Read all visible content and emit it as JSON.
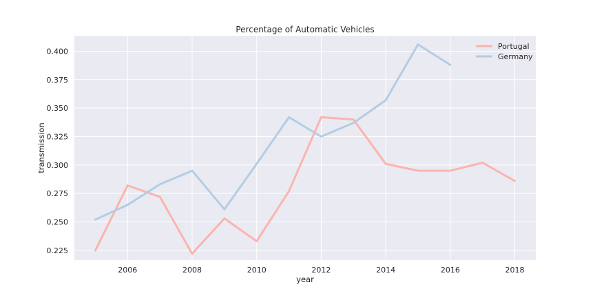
{
  "chart_data": {
    "type": "line",
    "title": "Percentage of Automatic Vehicles",
    "xlabel": "year",
    "ylabel": "transmission",
    "xlim": [
      2004.35,
      2018.65
    ],
    "ylim": [
      0.2164,
      0.4136
    ],
    "x_ticks": [
      2006,
      2008,
      2010,
      2012,
      2014,
      2016,
      2018
    ],
    "x_tick_labels": [
      "2006",
      "2008",
      "2010",
      "2012",
      "2014",
      "2016",
      "2018"
    ],
    "y_ticks": [
      0.225,
      0.25,
      0.275,
      0.3,
      0.325,
      0.35,
      0.375,
      0.4
    ],
    "y_tick_labels": [
      "0.225",
      "0.250",
      "0.275",
      "0.300",
      "0.325",
      "0.350",
      "0.375",
      "0.400"
    ],
    "grid": true,
    "legend_position": "top-right",
    "background_color": "#eaeaf2",
    "grid_color": "#ffffff",
    "series": [
      {
        "name": "Portugal",
        "color": "#fbb4ae",
        "x": [
          2005,
          2006,
          2007,
          2008,
          2009,
          2010,
          2011,
          2012,
          2013,
          2014,
          2015,
          2016,
          2017,
          2018
        ],
        "values": [
          0.225,
          0.282,
          0.272,
          0.222,
          0.253,
          0.233,
          0.277,
          0.342,
          0.34,
          0.301,
          0.295,
          0.295,
          0.302,
          0.286
        ]
      },
      {
        "name": "Germany",
        "color": "#b3cde3",
        "x": [
          2005,
          2006,
          2007,
          2008,
          2009,
          2010,
          2011,
          2012,
          2013,
          2014,
          2015,
          2016
        ],
        "values": [
          0.252,
          0.265,
          0.283,
          0.295,
          0.261,
          0.301,
          0.342,
          0.325,
          0.337,
          0.357,
          0.406,
          0.388
        ]
      }
    ]
  }
}
